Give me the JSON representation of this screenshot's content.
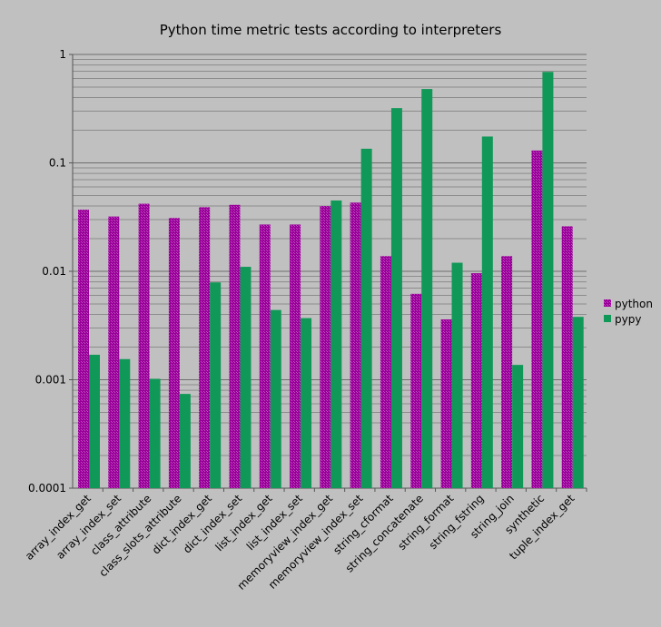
{
  "chart_data": {
    "type": "bar",
    "title": "Python time metric tests according to interpreters",
    "xlabel": "",
    "ylabel": "",
    "yscale": "log",
    "ylim": [
      0.0001,
      1
    ],
    "y_ticks": [
      {
        "value": 1,
        "label": "1"
      },
      {
        "value": 0.1,
        "label": "0.1"
      },
      {
        "value": 0.01,
        "label": "0.01"
      },
      {
        "value": 0.001,
        "label": "0.001"
      },
      {
        "value": 0.0001,
        "label": "0.0001"
      }
    ],
    "grid": true,
    "legend_position": "right",
    "categories": [
      "array_index_get",
      "array_index_set",
      "class_attribute",
      "class_slots_attribute",
      "dict_index_get",
      "dict_index_set",
      "list_index_get",
      "list_index_set",
      "memoryview_index_get",
      "memoryview_index_set",
      "string_cformat",
      "string_concatenate",
      "string_format",
      "string_fstring",
      "string_join",
      "synthetic",
      "tuple_index_get"
    ],
    "series": [
      {
        "name": "python",
        "color": "#990099",
        "values": [
          0.037,
          0.032,
          0.042,
          0.031,
          0.039,
          0.041,
          0.027,
          0.027,
          0.04,
          0.043,
          0.0138,
          0.0062,
          0.0036,
          0.0096,
          0.0138,
          0.13,
          0.026
        ]
      },
      {
        "name": "pypy",
        "color": "#109858",
        "values": [
          0.0017,
          0.00155,
          0.00102,
          0.00074,
          0.0079,
          0.011,
          0.0044,
          0.0037,
          0.045,
          0.135,
          0.32,
          0.48,
          0.012,
          0.175,
          0.00137,
          0.69,
          0.0038
        ]
      }
    ]
  }
}
